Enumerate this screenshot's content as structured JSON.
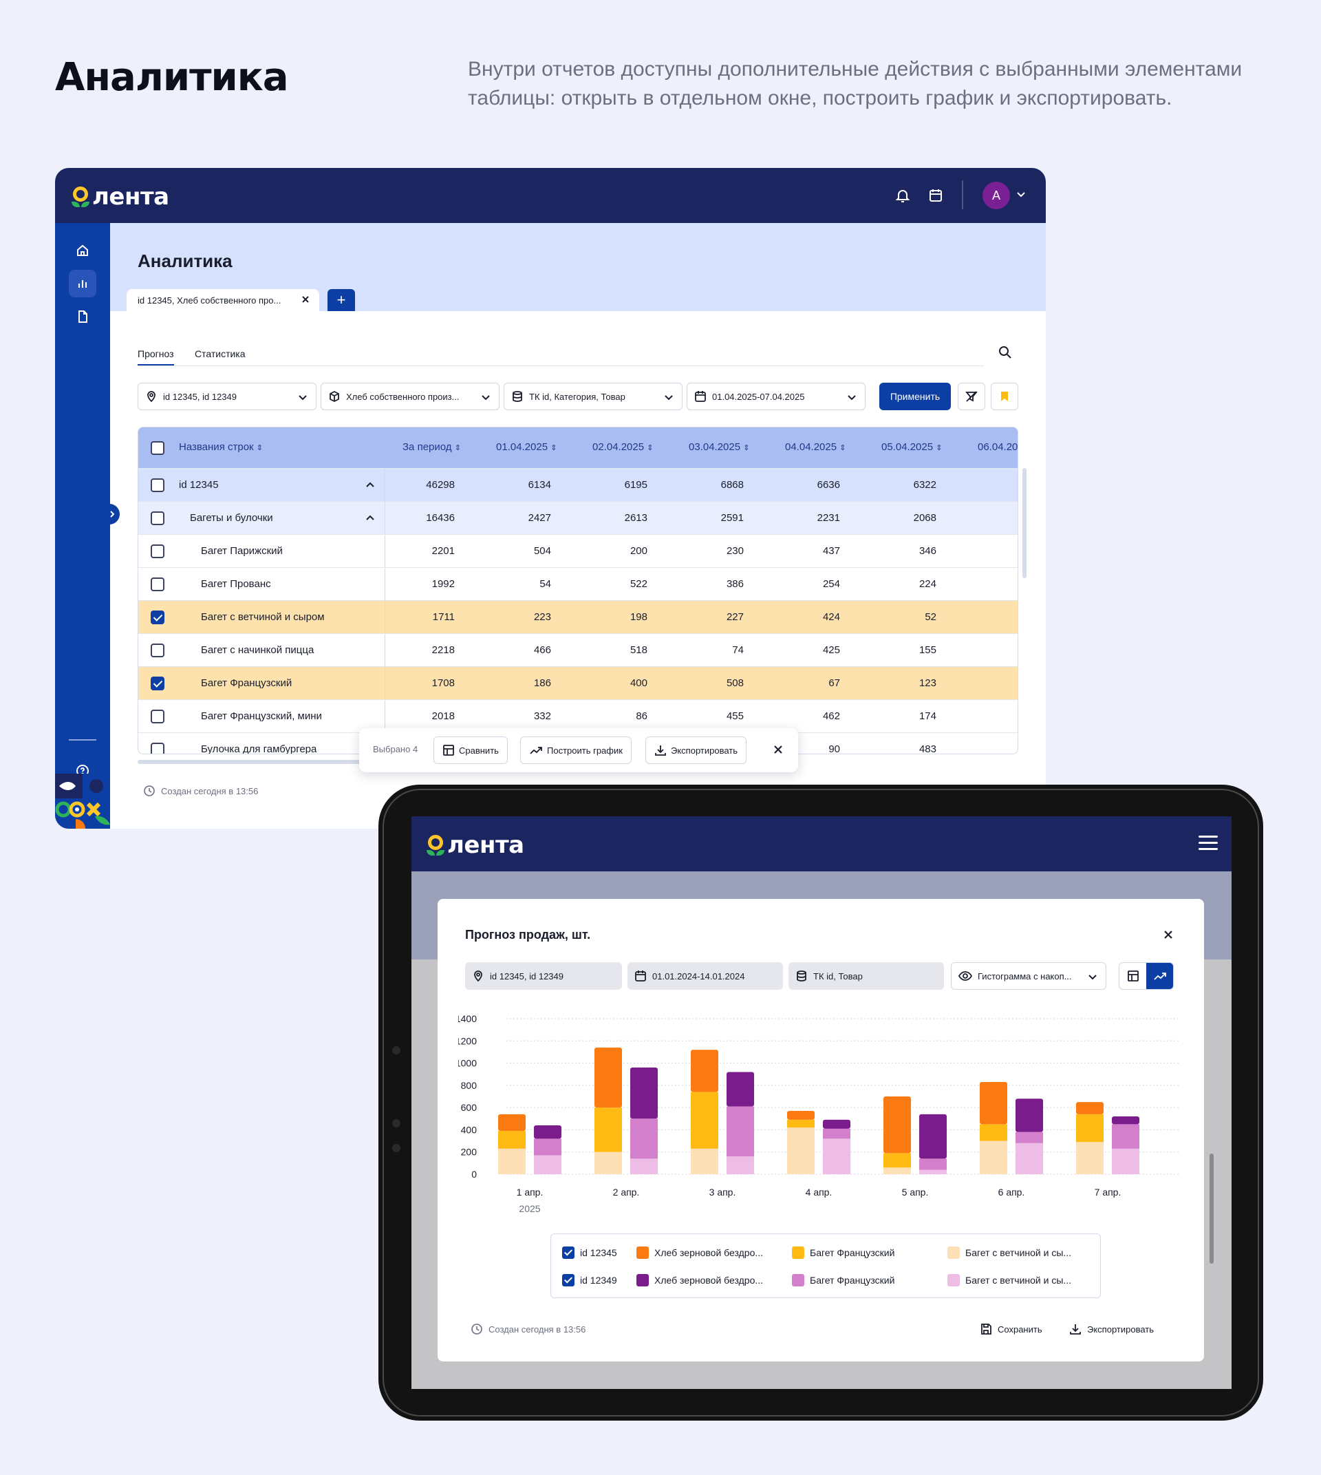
{
  "page": {
    "title": "Аналитика",
    "description": "Внутри отчетов доступны дополнительные действия с выбранными элементами таблицы: открыть в отдельном окне, построить график и экспортировать."
  },
  "brand": {
    "logo_text": "лента",
    "color_primary": "#0d3ea3",
    "color_header": "#1b2560",
    "color_logo": "#ffc629"
  },
  "desktop": {
    "avatar_letter": "А",
    "content_title": "Аналитика",
    "doc_tab_label": "id 12345, Хлеб собственного про...",
    "add_tab_label": "+",
    "subtabs": [
      "Прогноз",
      "Статистика"
    ],
    "filters": [
      {
        "icon": "location-pin-icon",
        "value": "id 12345, id 12349"
      },
      {
        "icon": "box-icon",
        "value": "Хлеб собственного произ..."
      },
      {
        "icon": "database-icon",
        "value": "ТК id, Категория, Товар"
      },
      {
        "icon": "calendar-icon",
        "value": "01.04.2025-07.04.2025"
      }
    ],
    "apply_label": "Применить",
    "table": {
      "headers": [
        "Названия строк",
        "За период",
        "01.04.2025",
        "02.04.2025",
        "03.04.2025",
        "04.04.2025",
        "05.04.2025",
        "06.04.20"
      ],
      "rows": [
        {
          "name": "id 12345",
          "level": 0,
          "checked": false,
          "values": [
            "46298",
            "6134",
            "6195",
            "6868",
            "6636",
            "6322"
          ]
        },
        {
          "name": "Багеты и булочки",
          "level": 1,
          "checked": false,
          "values": [
            "16436",
            "2427",
            "2613",
            "2591",
            "2231",
            "2068"
          ]
        },
        {
          "name": "Багет Парижский",
          "level": 2,
          "checked": false,
          "values": [
            "2201",
            "504",
            "200",
            "230",
            "437",
            "346"
          ]
        },
        {
          "name": "Багет Прованс",
          "level": 2,
          "checked": false,
          "values": [
            "1992",
            "54",
            "522",
            "386",
            "254",
            "224"
          ]
        },
        {
          "name": "Багет с ветчиной и сыром",
          "level": 2,
          "checked": true,
          "values": [
            "1711",
            "223",
            "198",
            "227",
            "424",
            "52"
          ]
        },
        {
          "name": "Багет с начинкой пицца",
          "level": 2,
          "checked": false,
          "values": [
            "2218",
            "466",
            "518",
            "74",
            "425",
            "155"
          ]
        },
        {
          "name": "Багет Французский",
          "level": 2,
          "checked": true,
          "values": [
            "1708",
            "186",
            "400",
            "508",
            "67",
            "123"
          ]
        },
        {
          "name": "Багет Французский, мини",
          "level": 2,
          "checked": false,
          "values": [
            "2018",
            "332",
            "86",
            "455",
            "462",
            "174"
          ]
        },
        {
          "name": "Булочка для гамбургера",
          "level": 2,
          "checked": false,
          "values": [
            "",
            "",
            "",
            "",
            "90",
            "483"
          ]
        }
      ]
    },
    "selection_bar": {
      "count_label": "Выбрано 4",
      "compare_label": "Сравнить",
      "chart_label": "Построить график",
      "export_label": "Экспортировать"
    },
    "created_label": "Создан сегодня в 13:56"
  },
  "tablet": {
    "modal_title": "Прогноз продаж, шт.",
    "filters": [
      {
        "icon": "location-pin-icon",
        "value": "id 12345, id 12349"
      },
      {
        "icon": "calendar-icon",
        "value": "01.01.2024-14.01.2024"
      },
      {
        "icon": "database-icon",
        "value": "ТК id, Товар"
      }
    ],
    "chart_type_label": "Гистограмма с накоп...",
    "legend": {
      "rows": [
        {
          "label": "id 12345",
          "items": [
            "Хлеб зерновой бездро...",
            "Багет Французский",
            "Багет с ветчиной и сы..."
          ]
        },
        {
          "label": "id 12349",
          "items": [
            "Хлеб зерновой бездро...",
            "Багет Французский",
            "Багет с ветчиной и сы..."
          ]
        }
      ]
    },
    "created_label": "Создан сегодня в 13:56",
    "save_label": "Сохранить",
    "export_label": "Экспортировать"
  },
  "chart_data": {
    "type": "bar",
    "stacked": true,
    "title": "Прогноз продаж, шт.",
    "categories": [
      "1 апр.",
      "2 апр.",
      "3 апр.",
      "4 апр.",
      "5 апр.",
      "6 апр.",
      "7 апр."
    ],
    "year_label": "2025",
    "ylim": [
      0,
      1400
    ],
    "yticks": [
      0,
      200,
      400,
      600,
      800,
      1000,
      1200,
      1400
    ],
    "groups": [
      {
        "name": "id 12345",
        "series": [
          {
            "name": "Багет с ветчиной и сы...",
            "color": "#fde0b5",
            "values": [
              230,
              200,
              230,
              420,
              60,
              300,
              290
            ]
          },
          {
            "name": "Багет Французский",
            "color": "#ffbb14",
            "values": [
              160,
              400,
              510,
              70,
              130,
              150,
              250
            ]
          },
          {
            "name": "Хлеб зерновой бездро...",
            "color": "#fb7b12",
            "values": [
              150,
              540,
              380,
              80,
              510,
              380,
              110
            ]
          }
        ]
      },
      {
        "name": "id 12349",
        "series": [
          {
            "name": "Багет с ветчиной и сы...",
            "color": "#edbde6",
            "values": [
              170,
              140,
              160,
              320,
              40,
              280,
              230
            ]
          },
          {
            "name": "Багет Французский",
            "color": "#d37fcb",
            "values": [
              150,
              360,
              450,
              90,
              100,
              100,
              220
            ]
          },
          {
            "name": "Хлеб зерновой бездро...",
            "color": "#7a1c8c",
            "values": [
              120,
              460,
              310,
              80,
              400,
              300,
              70
            ]
          }
        ]
      }
    ]
  }
}
